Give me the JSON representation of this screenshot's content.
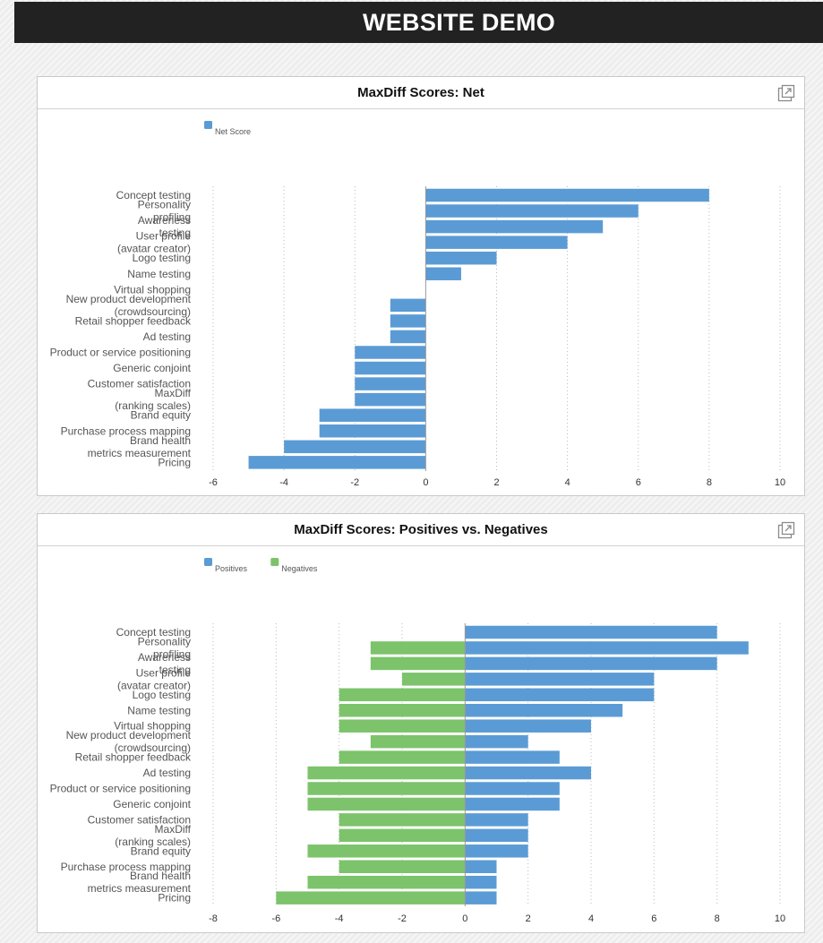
{
  "header": {
    "title": "WEBSITE DEMO"
  },
  "colors": {
    "positive": "#5b9bd5",
    "negative": "#7cc36b",
    "grid": "#bbbbbb",
    "axis": "#999999"
  },
  "chart_data": [
    {
      "type": "bar",
      "orientation": "horizontal",
      "title": "MaxDiff Scores: Net",
      "categories": [
        [
          "Concept testing"
        ],
        [
          "Personality",
          "profiling"
        ],
        [
          "Awareness",
          "testing"
        ],
        [
          "User profile",
          "(avatar creator)"
        ],
        [
          "Logo testing"
        ],
        [
          "Name testing"
        ],
        [
          "Virtual shopping"
        ],
        [
          "New product development",
          "(crowdsourcing)"
        ],
        [
          "Retail shopper feedback"
        ],
        [
          "Ad testing"
        ],
        [
          "Product or service positioning"
        ],
        [
          "Generic conjoint"
        ],
        [
          "Customer satisfaction"
        ],
        [
          "MaxDiff",
          "(ranking scales)"
        ],
        [
          "Brand equity"
        ],
        [
          "Purchase process mapping"
        ],
        [
          "Brand health",
          "metrics measurement"
        ],
        [
          "Pricing"
        ]
      ],
      "series": [
        {
          "name": "Net Score",
          "color": "#5b9bd5",
          "values": [
            8,
            6,
            5,
            4,
            2,
            1,
            0,
            -1,
            -1,
            -1,
            -2,
            -2,
            -2,
            -2,
            -3,
            -3,
            -4,
            -5
          ]
        }
      ],
      "xlim": [
        -6,
        10
      ],
      "xticks": [
        -6,
        -4,
        -2,
        0,
        2,
        4,
        6,
        8,
        10
      ],
      "legend": "top-left",
      "grid": true
    },
    {
      "type": "bar",
      "orientation": "horizontal",
      "title": "MaxDiff Scores: Positives vs. Negatives",
      "categories": [
        [
          "Concept testing"
        ],
        [
          "Personality",
          "profiling"
        ],
        [
          "Awareness",
          "testing"
        ],
        [
          "User profile",
          "(avatar creator)"
        ],
        [
          "Logo testing"
        ],
        [
          "Name testing"
        ],
        [
          "Virtual shopping"
        ],
        [
          "New product development",
          "(crowdsourcing)"
        ],
        [
          "Retail shopper feedback"
        ],
        [
          "Ad testing"
        ],
        [
          "Product or service positioning"
        ],
        [
          "Generic conjoint"
        ],
        [
          "Customer satisfaction"
        ],
        [
          "MaxDiff",
          "(ranking scales)"
        ],
        [
          "Brand equity"
        ],
        [
          "Purchase process mapping"
        ],
        [
          "Brand health",
          "metrics measurement"
        ],
        [
          "Pricing"
        ]
      ],
      "series": [
        {
          "name": "Positives",
          "color": "#5b9bd5",
          "values": [
            8,
            9,
            8,
            6,
            6,
            5,
            4,
            2,
            3,
            4,
            3,
            3,
            2,
            2,
            2,
            1,
            1,
            1
          ]
        },
        {
          "name": "Negatives",
          "color": "#7cc36b",
          "values": [
            0,
            -3,
            -3,
            -2,
            -4,
            -4,
            -4,
            -3,
            -4,
            -5,
            -5,
            -5,
            -4,
            -4,
            -5,
            -4,
            -5,
            -6
          ]
        }
      ],
      "xlim": [
        -8,
        10
      ],
      "xticks": [
        -8,
        -6,
        -4,
        -2,
        0,
        2,
        4,
        6,
        8,
        10
      ],
      "legend": "top-left",
      "grid": true
    }
  ]
}
